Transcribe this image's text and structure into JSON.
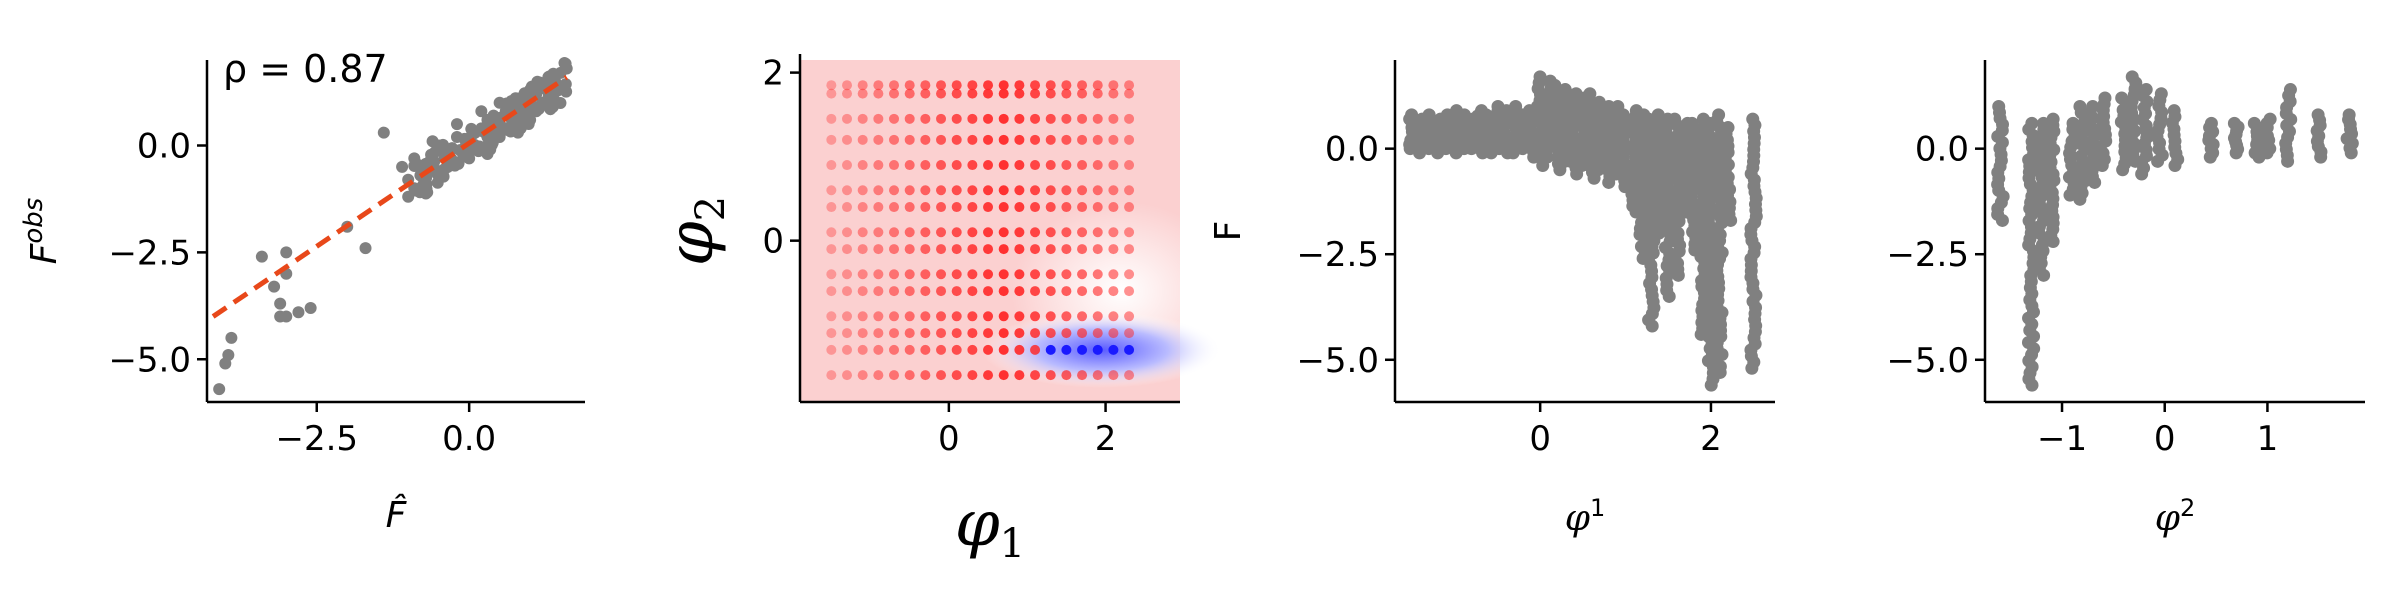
{
  "chart_data": [
    {
      "type": "scatter",
      "annotation": "ρ = 0.87",
      "xlabel": "F̂",
      "ylabel": "F",
      "ylabel_superscript": "obs",
      "xlim": [
        -4.3,
        1.9
      ],
      "ylim": [
        -6.0,
        2.0
      ],
      "xticks": [
        -2.5,
        0.0
      ],
      "xtick_labels": [
        "−2.5",
        "0.0"
      ],
      "yticks": [
        -5.0,
        -2.5,
        0.0
      ],
      "ytick_labels": [
        "−5.0",
        "−2.5",
        "0.0"
      ],
      "fit_line": {
        "x": [
          -4.2,
          1.6
        ],
        "y": [
          -4.0,
          1.6
        ],
        "color": "#e8481a",
        "style": "dashed"
      },
      "point_color": "#808080",
      "points": [
        [
          -4.1,
          -5.7
        ],
        [
          -4.0,
          -5.1
        ],
        [
          -3.95,
          -4.9
        ],
        [
          -3.9,
          -4.5
        ],
        [
          -3.4,
          -2.6
        ],
        [
          -3.2,
          -3.3
        ],
        [
          -3.1,
          -3.7
        ],
        [
          -3.0,
          -3.0
        ],
        [
          -3.0,
          -2.5
        ],
        [
          -3.1,
          -4.0
        ],
        [
          -3.0,
          -4.0
        ],
        [
          -2.8,
          -3.9
        ],
        [
          -2.6,
          -3.8
        ],
        [
          -2.0,
          -1.9
        ],
        [
          -1.7,
          -2.4
        ],
        [
          -1.4,
          0.3
        ],
        [
          -1.1,
          -0.5
        ],
        [
          -1.0,
          -0.8
        ],
        [
          -1.0,
          -1.2
        ],
        [
          -0.9,
          -1.0
        ],
        [
          -0.8,
          -0.7
        ],
        [
          -0.7,
          -0.9
        ],
        [
          -0.6,
          -0.4
        ],
        [
          -0.5,
          -0.6
        ],
        [
          -0.5,
          0.0
        ],
        [
          -0.4,
          -0.3
        ],
        [
          -0.35,
          -0.5
        ],
        [
          -0.3,
          -0.1
        ],
        [
          -0.2,
          -0.4
        ],
        [
          -0.2,
          0.2
        ],
        [
          -0.1,
          -0.2
        ],
        [
          0.0,
          0.1
        ],
        [
          0.0,
          -0.3
        ],
        [
          0.1,
          0.3
        ],
        [
          0.1,
          0.0
        ],
        [
          0.2,
          0.4
        ],
        [
          0.2,
          -0.1
        ],
        [
          0.3,
          0.2
        ],
        [
          0.3,
          0.6
        ],
        [
          0.4,
          0.3
        ],
        [
          0.4,
          0.7
        ],
        [
          0.5,
          0.5
        ],
        [
          0.5,
          0.2
        ],
        [
          0.6,
          0.8
        ],
        [
          0.6,
          0.4
        ],
        [
          0.7,
          0.6
        ],
        [
          0.7,
          1.0
        ],
        [
          0.8,
          0.7
        ],
        [
          0.8,
          1.1
        ],
        [
          0.9,
          0.9
        ],
        [
          0.9,
          0.5
        ],
        [
          1.0,
          1.0
        ],
        [
          1.0,
          1.3
        ],
        [
          1.1,
          0.8
        ],
        [
          1.1,
          1.2
        ],
        [
          1.2,
          1.4
        ],
        [
          1.2,
          1.0
        ],
        [
          1.3,
          1.6
        ],
        [
          1.3,
          1.1
        ],
        [
          1.4,
          1.3
        ],
        [
          1.5,
          1.7
        ],
        [
          1.6,
          1.8
        ],
        [
          0.2,
          0.8
        ],
        [
          -0.2,
          0.5
        ],
        [
          0.5,
          1.0
        ],
        [
          -0.6,
          0.1
        ],
        [
          -0.9,
          -0.3
        ],
        [
          0.8,
          0.3
        ],
        [
          1.0,
          0.6
        ],
        [
          0.3,
          -0.2
        ]
      ]
    },
    {
      "type": "heatmap",
      "xlabel": "φ",
      "xlabel_subscript": "1",
      "ylabel": "φ",
      "ylabel_subscript": "2",
      "xlim": [
        -1.9,
        2.95
      ],
      "ylim": [
        -1.92,
        2.15
      ],
      "xticks": [
        0,
        2
      ],
      "xtick_labels": [
        "0",
        "2"
      ],
      "yticks": [
        0,
        2
      ],
      "ytick_labels": [
        "0",
        "2"
      ],
      "grid_y": [
        -1.6,
        -1.3,
        -1.1,
        -0.9,
        -0.6,
        -0.4,
        -0.1,
        0.1,
        0.4,
        0.6,
        0.9,
        1.2,
        1.45,
        1.75,
        1.85
      ],
      "grid_x": [
        -1.5,
        -1.3,
        -1.1,
        -0.9,
        -0.7,
        -0.5,
        -0.3,
        -0.1,
        0.1,
        0.3,
        0.5,
        0.7,
        0.9,
        1.1,
        1.3,
        1.5,
        1.7,
        1.9,
        2.1,
        2.3
      ],
      "colors": {
        "positive": "#ff2020",
        "negative": "#1a1aff",
        "background": "#fbd0d0"
      }
    },
    {
      "type": "scatter",
      "xlabel": "φ",
      "xlabel_superscript": "1",
      "ylabel": "F",
      "xlim": [
        -1.7,
        2.75
      ],
      "ylim": [
        -6.0,
        2.1
      ],
      "xticks": [
        0,
        2
      ],
      "xtick_labels": [
        "0",
        "2"
      ],
      "yticks": [
        -5.0,
        -2.5,
        0.0
      ],
      "ytick_labels": [
        "−5.0",
        "−2.5",
        "0.0"
      ],
      "point_color": "#808080",
      "columns": [
        [
          -1.5,
          0.0,
          0.8
        ],
        [
          -1.4,
          -0.1,
          0.7
        ],
        [
          -1.3,
          0.0,
          0.8
        ],
        [
          -1.2,
          -0.1,
          0.7
        ],
        [
          -1.1,
          0.0,
          0.8
        ],
        [
          -1.0,
          -0.1,
          0.9
        ],
        [
          -0.9,
          0.0,
          0.8
        ],
        [
          -0.8,
          0.0,
          0.7
        ],
        [
          -0.7,
          -0.1,
          0.9
        ],
        [
          -0.6,
          -0.1,
          0.8
        ],
        [
          -0.5,
          0.0,
          1.0
        ],
        [
          -0.4,
          -0.1,
          0.9
        ],
        [
          -0.3,
          -0.1,
          1.0
        ],
        [
          -0.2,
          0.0,
          0.8
        ],
        [
          -0.1,
          -0.2,
          0.9
        ],
        [
          0.0,
          -0.4,
          1.7
        ],
        [
          0.1,
          -0.2,
          1.6
        ],
        [
          0.2,
          -0.5,
          1.5
        ],
        [
          0.3,
          -0.3,
          1.4
        ],
        [
          0.4,
          -0.6,
          1.3
        ],
        [
          0.5,
          -0.4,
          1.2
        ],
        [
          0.6,
          -0.7,
          1.3
        ],
        [
          0.7,
          -0.5,
          1.1
        ],
        [
          0.8,
          -0.8,
          1.0
        ],
        [
          0.9,
          -0.6,
          1.0
        ],
        [
          1.0,
          -0.9,
          0.8
        ],
        [
          1.1,
          -1.5,
          0.9
        ],
        [
          1.2,
          -2.6,
          0.8
        ],
        [
          1.3,
          -4.2,
          0.7
        ],
        [
          1.4,
          -2.0,
          0.8
        ],
        [
          1.5,
          -3.5,
          0.7
        ],
        [
          1.6,
          -3.0,
          0.7
        ],
        [
          1.7,
          -1.5,
          0.6
        ],
        [
          1.8,
          -2.4,
          0.6
        ],
        [
          1.9,
          -4.4,
          0.7
        ],
        [
          2.0,
          -5.6,
          0.6
        ],
        [
          2.1,
          -5.3,
          0.8
        ],
        [
          2.2,
          -1.7,
          0.5
        ],
        [
          2.5,
          -5.2,
          0.7
        ]
      ]
    },
    {
      "type": "scatter",
      "xlabel": "φ",
      "xlabel_superscript": "2",
      "ylabel": "",
      "xlim": [
        -1.75,
        1.95
      ],
      "ylim": [
        -6.0,
        2.1
      ],
      "xticks": [
        -1,
        0,
        1
      ],
      "xtick_labels": [
        "−1",
        "0",
        "1"
      ],
      "yticks": [
        -5.0,
        -2.5,
        0.0
      ],
      "ytick_labels": [
        "−5.0",
        "−2.5",
        "0.0"
      ],
      "point_color": "#808080",
      "columns": [
        [
          -1.6,
          -1.7,
          1.0
        ],
        [
          -1.3,
          -5.6,
          0.6
        ],
        [
          -1.2,
          -3.0,
          0.6
        ],
        [
          -1.1,
          -2.2,
          0.7
        ],
        [
          -0.9,
          -1.1,
          0.6
        ],
        [
          -0.8,
          -1.2,
          1.0
        ],
        [
          -0.7,
          -0.8,
          1.0
        ],
        [
          -0.6,
          -0.4,
          1.2
        ],
        [
          -0.4,
          -0.5,
          1.2
        ],
        [
          -0.3,
          -0.3,
          1.7
        ],
        [
          -0.2,
          -0.6,
          1.4
        ],
        [
          -0.05,
          -0.3,
          1.3
        ],
        [
          0.1,
          -0.4,
          0.9
        ],
        [
          0.45,
          -0.2,
          0.6
        ],
        [
          0.7,
          -0.1,
          0.6
        ],
        [
          0.9,
          -0.2,
          0.6
        ],
        [
          1.0,
          -0.1,
          0.7
        ],
        [
          1.2,
          -0.3,
          1.4
        ],
        [
          1.5,
          -0.2,
          0.8
        ],
        [
          1.8,
          -0.1,
          0.8
        ]
      ]
    }
  ]
}
